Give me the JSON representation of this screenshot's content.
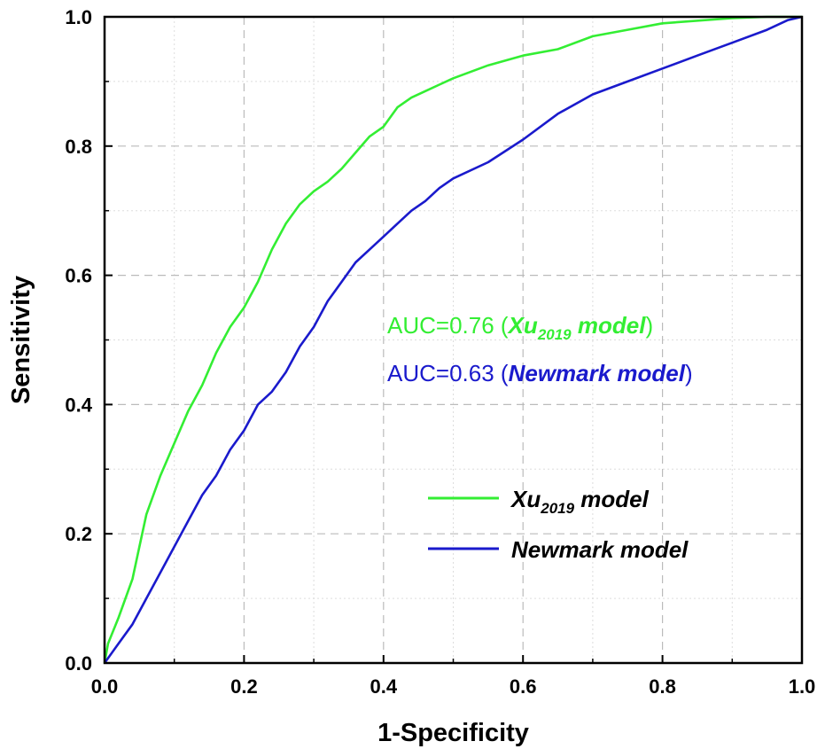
{
  "chart_data": {
    "type": "line",
    "xlabel": "1-Specificity",
    "ylabel": "Sensitivity",
    "xlim": [
      0,
      1
    ],
    "ylim": [
      0,
      1
    ],
    "xticks": [
      "0.0",
      "0.2",
      "0.4",
      "0.6",
      "0.8",
      "1.0"
    ],
    "yticks": [
      "0.0",
      "0.2",
      "0.4",
      "0.6",
      "0.8",
      "1.0"
    ],
    "grid": true,
    "legend_position": "bottom-right",
    "series": [
      {
        "name": "Xu2019 model",
        "legend_label": {
          "prefix": "Xu",
          "sub": "2019",
          "suffix": " model"
        },
        "color": "#33ee33",
        "x": [
          0,
          0.005,
          0.02,
          0.04,
          0.05,
          0.06,
          0.08,
          0.1,
          0.12,
          0.14,
          0.16,
          0.18,
          0.2,
          0.22,
          0.24,
          0.26,
          0.28,
          0.3,
          0.32,
          0.34,
          0.36,
          0.38,
          0.4,
          0.42,
          0.44,
          0.46,
          0.48,
          0.5,
          0.55,
          0.6,
          0.65,
          0.7,
          0.75,
          0.8,
          0.9,
          0.95,
          1.0
        ],
        "y": [
          0,
          0.03,
          0.07,
          0.13,
          0.18,
          0.23,
          0.29,
          0.34,
          0.39,
          0.43,
          0.48,
          0.52,
          0.55,
          0.59,
          0.64,
          0.68,
          0.71,
          0.73,
          0.745,
          0.765,
          0.79,
          0.815,
          0.83,
          0.86,
          0.875,
          0.885,
          0.895,
          0.905,
          0.925,
          0.94,
          0.95,
          0.97,
          0.98,
          0.99,
          0.998,
          1.0,
          1.0
        ]
      },
      {
        "name": "Newmark model",
        "legend_label": {
          "prefix": "Newmark model",
          "sub": "",
          "suffix": ""
        },
        "color": "#1a1acc",
        "x": [
          0,
          0.02,
          0.04,
          0.06,
          0.08,
          0.1,
          0.12,
          0.14,
          0.16,
          0.18,
          0.2,
          0.22,
          0.24,
          0.26,
          0.28,
          0.3,
          0.32,
          0.34,
          0.36,
          0.38,
          0.4,
          0.42,
          0.44,
          0.46,
          0.48,
          0.5,
          0.55,
          0.6,
          0.65,
          0.7,
          0.75,
          0.8,
          0.85,
          0.9,
          0.95,
          0.98,
          1.0
        ],
        "y": [
          0,
          0.03,
          0.06,
          0.1,
          0.14,
          0.18,
          0.22,
          0.26,
          0.29,
          0.33,
          0.36,
          0.4,
          0.42,
          0.45,
          0.49,
          0.52,
          0.56,
          0.59,
          0.62,
          0.64,
          0.66,
          0.68,
          0.7,
          0.715,
          0.735,
          0.75,
          0.775,
          0.81,
          0.85,
          0.88,
          0.9,
          0.92,
          0.94,
          0.96,
          0.98,
          0.995,
          1.0
        ]
      }
    ],
    "annotations": [
      {
        "prefix": "AUC=0.76 (",
        "model_main": "Xu",
        "model_sub": "2019",
        "model_tail": " model",
        "suffix": ")",
        "color": "#33ee33"
      },
      {
        "prefix": "AUC=0.63 (",
        "model_main": "Newmark model",
        "model_sub": "",
        "model_tail": "",
        "suffix": ")",
        "color": "#1a1acc"
      }
    ]
  }
}
